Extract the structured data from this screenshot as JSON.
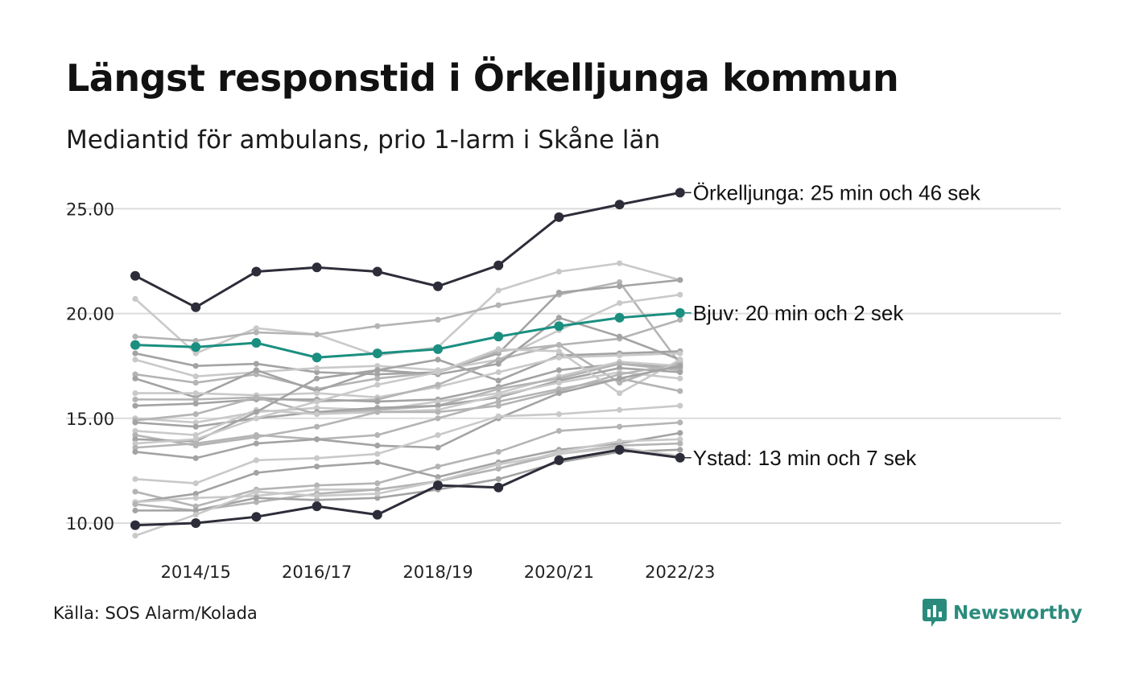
{
  "header": {
    "title": "Längst responstid i Örkelljunga kommun",
    "subtitle": "Mediantid för ambulans, prio 1-larm i Skåne län"
  },
  "footer": {
    "source": "Källa: SOS Alarm/Kolada",
    "brand": "Newsworthy"
  },
  "colors": {
    "highlight_dark": "#2d2d3a",
    "highlight_teal": "#1a8f80",
    "background_lines": [
      "#c9c9c9",
      "#b4b4b4",
      "#a3a3a3"
    ],
    "brand": "#2a8b7c"
  },
  "icons": {
    "brand_logo": "bar-chart-speech-bubble-icon"
  },
  "chart_data": {
    "type": "line",
    "x": [
      "2013/14",
      "2014/15",
      "2015/16",
      "2016/17",
      "2017/18",
      "2018/19",
      "2019/20",
      "2020/21",
      "2021/22",
      "2022/23"
    ],
    "x_tick_labels": [
      "2014/15",
      "2016/17",
      "2018/19",
      "2020/21",
      "2022/23"
    ],
    "y_ticks": [
      "10.00",
      "15.00",
      "20.00",
      "25.00"
    ],
    "ylim": [
      9.2,
      26.5
    ],
    "grid": true,
    "highlighted": [
      {
        "key": "orkelljunga",
        "label": "Örkelljunga: 25 min och 46 sek",
        "color": "#2d2d3a",
        "values": [
          21.8,
          20.3,
          22.0,
          22.2,
          22.0,
          21.3,
          22.3,
          24.6,
          25.2,
          25.77
        ]
      },
      {
        "key": "bjuv",
        "label": "Bjuv: 20 min och 2 sek",
        "color": "#1a8f80",
        "values": [
          18.5,
          18.4,
          18.6,
          17.9,
          18.1,
          18.3,
          18.9,
          19.4,
          19.8,
          20.03
        ]
      },
      {
        "key": "ystad",
        "label": "Ystad: 13 min och 7 sek",
        "color": "#2d2d3a",
        "values": [
          9.9,
          10.0,
          10.3,
          10.8,
          10.4,
          11.8,
          11.7,
          13.0,
          13.5,
          13.12
        ]
      }
    ],
    "background_series": [
      [
        20.7,
        18.1,
        19.3,
        19.0,
        18.0,
        18.4,
        21.1,
        22.0,
        22.4,
        21.6
      ],
      [
        18.9,
        18.7,
        19.1,
        19.0,
        19.4,
        19.7,
        20.4,
        20.9,
        21.5,
        17.6
      ],
      [
        18.1,
        17.5,
        17.6,
        17.2,
        17.1,
        17.2,
        18.1,
        21.0,
        21.3,
        21.6
      ],
      [
        17.8,
        17.0,
        17.2,
        17.4,
        17.5,
        17.3,
        17.8,
        19.2,
        20.5,
        20.9
      ],
      [
        17.1,
        16.7,
        17.1,
        16.4,
        16.9,
        17.2,
        18.2,
        18.5,
        18.8,
        19.7
      ],
      [
        16.9,
        16.0,
        17.3,
        16.3,
        17.3,
        17.8,
        16.8,
        18.0,
        18.1,
        18.2
      ],
      [
        16.2,
        16.2,
        16.1,
        16.2,
        16.0,
        16.5,
        17.2,
        17.9,
        18.0,
        18.1
      ],
      [
        15.9,
        15.9,
        16.0,
        15.8,
        15.9,
        16.6,
        17.8,
        18.5,
        16.7,
        17.7
      ],
      [
        15.6,
        15.7,
        15.9,
        15.9,
        15.8,
        15.9,
        16.5,
        17.3,
        17.6,
        17.4
      ],
      [
        15.0,
        14.8,
        15.3,
        15.5,
        15.4,
        15.8,
        16.2,
        17.0,
        17.7,
        17.5
      ],
      [
        14.9,
        15.2,
        16.0,
        15.2,
        15.4,
        15.6,
        16.4,
        16.9,
        17.6,
        17.3
      ],
      [
        14.8,
        14.6,
        15.0,
        15.3,
        15.5,
        15.6,
        16.0,
        16.8,
        17.4,
        17.2
      ],
      [
        14.4,
        14.2,
        15.4,
        15.2,
        15.3,
        15.4,
        16.1,
        16.7,
        17.2,
        16.9
      ],
      [
        14.2,
        13.7,
        14.1,
        14.6,
        15.3,
        15.3,
        15.6,
        16.3,
        17.1,
        17.6
      ],
      [
        14.0,
        13.9,
        15.3,
        16.9,
        17.3,
        17.1,
        17.6,
        19.8,
        18.9,
        17.8
      ],
      [
        13.8,
        14.0,
        15.0,
        15.8,
        16.6,
        17.2,
        18.3,
        18.2,
        16.2,
        17.8
      ],
      [
        13.6,
        13.8,
        14.2,
        14.0,
        14.2,
        15.0,
        15.8,
        16.4,
        16.9,
        16.3
      ],
      [
        13.4,
        13.1,
        13.8,
        14.0,
        13.7,
        13.6,
        15.0,
        16.2,
        16.9,
        17.5
      ],
      [
        12.1,
        11.9,
        13.0,
        13.1,
        13.3,
        14.2,
        15.1,
        15.2,
        15.4,
        15.6
      ],
      [
        11.5,
        10.8,
        11.6,
        11.8,
        11.9,
        12.7,
        13.4,
        14.4,
        14.6,
        14.8
      ],
      [
        11.0,
        11.4,
        12.4,
        12.7,
        12.9,
        12.2,
        12.9,
        13.5,
        13.8,
        14.3
      ],
      [
        11.0,
        11.2,
        11.3,
        11.6,
        11.6,
        12.0,
        12.6,
        13.4,
        13.9,
        14.0
      ],
      [
        10.9,
        10.6,
        11.0,
        11.4,
        11.6,
        12.0,
        12.6,
        13.3,
        13.7,
        13.8
      ],
      [
        10.6,
        10.6,
        11.2,
        11.1,
        11.2,
        11.6,
        12.1,
        12.9,
        13.4,
        13.5
      ],
      [
        9.4,
        10.4,
        11.5,
        11.3,
        11.4,
        12.0,
        12.8,
        13.3,
        13.6,
        13.2
      ]
    ]
  }
}
